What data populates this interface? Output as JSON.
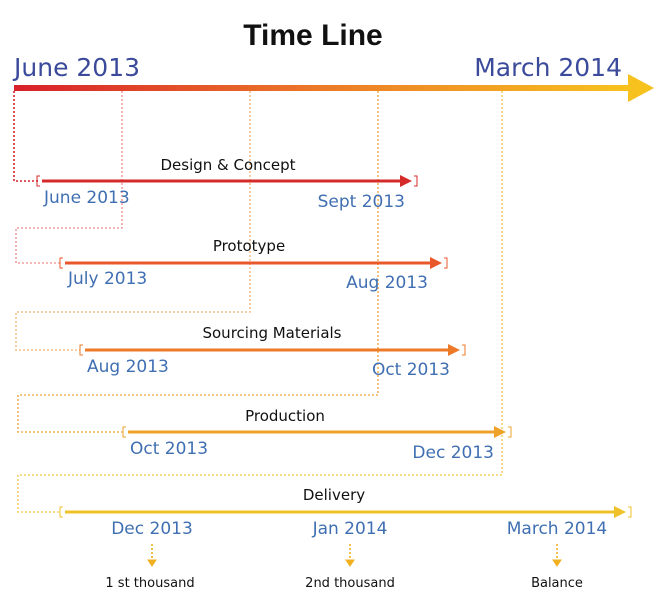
{
  "title": "Time Line",
  "axis": {
    "start": "June 2013",
    "end": "March 2014"
  },
  "phases": [
    {
      "label": "Design & Concept",
      "start": "June 2013",
      "end": "Sept 2013"
    },
    {
      "label": "Prototype",
      "start": "July 2013",
      "end": "Aug 2013"
    },
    {
      "label": "Sourcing Materials",
      "start": "Aug 2013",
      "end": "Oct 2013"
    },
    {
      "label": "Production",
      "start": "Oct 2013",
      "end": "Dec 2013"
    }
  ],
  "delivery": {
    "label": "Delivery",
    "milestones": [
      {
        "date": "Dec 2013",
        "note": "1 st thousand"
      },
      {
        "date": "Jan 2014",
        "note": "2nd thousand"
      },
      {
        "date": "March 2014",
        "note": "Balance"
      }
    ]
  }
}
